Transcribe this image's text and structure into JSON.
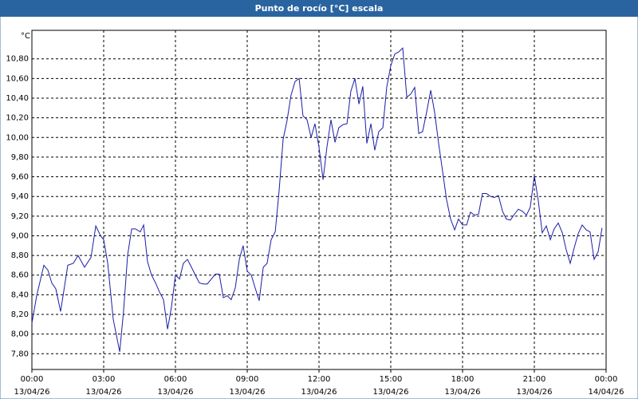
{
  "chart_data": {
    "type": "line",
    "title": "Punto de rocío [°C] escala",
    "y_label": "°C",
    "x": [
      0,
      0.2,
      0.5,
      0.67,
      0.83,
      1,
      1.2,
      1.5,
      1.73,
      1.93,
      2.2,
      2.47,
      2.67,
      2.87,
      3,
      3.17,
      3.4,
      3.67,
      3.83,
      4,
      4.17,
      4.33,
      4.53,
      4.67,
      4.83,
      5,
      5.17,
      5.33,
      5.5,
      5.67,
      5.83,
      6,
      6.17,
      6.33,
      6.5,
      6.67,
      6.83,
      7,
      7.17,
      7.33,
      7.5,
      7.67,
      7.83,
      8,
      8.17,
      8.33,
      8.5,
      8.67,
      8.83,
      9,
      9.17,
      9.33,
      9.5,
      9.67,
      9.83,
      10,
      10.17,
      10.33,
      10.5,
      10.67,
      10.83,
      11,
      11.17,
      11.33,
      11.5,
      11.67,
      11.83,
      12,
      12.17,
      12.33,
      12.5,
      12.67,
      12.83,
      13,
      13.17,
      13.33,
      13.5,
      13.67,
      13.83,
      14,
      14.17,
      14.33,
      14.5,
      14.67,
      14.83,
      15,
      15.17,
      15.33,
      15.5,
      15.67,
      15.83,
      16,
      16.17,
      16.33,
      16.5,
      16.67,
      16.83,
      17,
      17.17,
      17.33,
      17.5,
      17.67,
      17.83,
      18,
      18.17,
      18.33,
      18.5,
      18.67,
      18.83,
      19,
      19.17,
      19.33,
      19.5,
      19.67,
      19.83,
      20,
      20.17,
      20.33,
      20.5,
      20.67,
      20.83,
      21,
      21.17,
      21.33,
      21.5,
      21.67,
      21.83,
      22,
      22.17,
      22.33,
      22.5,
      22.67,
      22.83,
      23,
      23.17,
      23.33,
      23.5,
      23.67,
      23.83
    ],
    "values": [
      8.11,
      8.39,
      8.7,
      8.65,
      8.52,
      8.46,
      8.23,
      8.7,
      8.72,
      8.8,
      8.68,
      8.78,
      9.1,
      9.0,
      8.96,
      8.72,
      8.15,
      7.82,
      8.23,
      8.8,
      9.07,
      9.07,
      9.04,
      9.11,
      8.74,
      8.6,
      8.52,
      8.43,
      8.35,
      8.05,
      8.27,
      8.6,
      8.56,
      8.72,
      8.76,
      8.68,
      8.6,
      8.52,
      8.51,
      8.51,
      8.56,
      8.61,
      8.61,
      8.37,
      8.39,
      8.35,
      8.47,
      8.76,
      8.9,
      8.64,
      8.6,
      8.47,
      8.34,
      8.68,
      8.72,
      8.96,
      9.04,
      9.45,
      9.98,
      10.18,
      10.43,
      10.57,
      10.6,
      10.22,
      10.18,
      10.0,
      10.14,
      9.9,
      9.57,
      9.9,
      10.18,
      9.95,
      10.1,
      10.13,
      10.14,
      10.47,
      10.6,
      10.34,
      10.52,
      9.94,
      10.14,
      9.87,
      10.06,
      10.1,
      10.51,
      10.73,
      10.85,
      10.87,
      10.91,
      10.41,
      10.44,
      10.51,
      10.04,
      10.06,
      10.26,
      10.48,
      10.26,
      9.94,
      9.65,
      9.37,
      9.17,
      9.06,
      9.17,
      9.11,
      9.11,
      9.24,
      9.21,
      9.22,
      9.43,
      9.43,
      9.4,
      9.39,
      9.41,
      9.25,
      9.17,
      9.16,
      9.22,
      9.27,
      9.25,
      9.21,
      9.29,
      9.61,
      9.35,
      9.03,
      9.1,
      8.96,
      9.07,
      9.13,
      9.03,
      8.86,
      8.72,
      8.88,
      9.02,
      9.11,
      9.06,
      9.04,
      8.76,
      8.84,
      9.08
    ],
    "color": "#1c1ca8",
    "xlim": [
      0,
      24
    ],
    "xticks": [
      {
        "value": 0,
        "label": "00:00",
        "date": "13/04/26"
      },
      {
        "value": 3,
        "label": "03:00",
        "date": "13/04/26"
      },
      {
        "value": 6,
        "label": "06:00",
        "date": "13/04/26"
      },
      {
        "value": 9,
        "label": "09:00",
        "date": "13/04/26"
      },
      {
        "value": 12,
        "label": "12:00",
        "date": "13/04/26"
      },
      {
        "value": 15,
        "label": "15:00",
        "date": "13/04/26"
      },
      {
        "value": 18,
        "label": "18:00",
        "date": "13/04/26"
      },
      {
        "value": 21,
        "label": "21:00",
        "date": "13/04/26"
      },
      {
        "value": 24,
        "label": "00:00",
        "date": "14/04/26"
      }
    ],
    "ylim": [
      7.64,
      11.09
    ],
    "yticks": [
      {
        "value": 7.8,
        "label": "7,80"
      },
      {
        "value": 8,
        "label": "8,00"
      },
      {
        "value": 8.2,
        "label": "8,20"
      },
      {
        "value": 8.4,
        "label": "8,40"
      },
      {
        "value": 8.6,
        "label": "8,60"
      },
      {
        "value": 8.8,
        "label": "8,80"
      },
      {
        "value": 9,
        "label": "9,00"
      },
      {
        "value": 9.2,
        "label": "9,20"
      },
      {
        "value": 9.4,
        "label": "9,40"
      },
      {
        "value": 9.6,
        "label": "9,60"
      },
      {
        "value": 9.8,
        "label": "9,80"
      },
      {
        "value": 10,
        "label": "10,00"
      },
      {
        "value": 10.2,
        "label": "10,20"
      },
      {
        "value": 10.4,
        "label": "10,40"
      },
      {
        "value": 10.6,
        "label": "10,60"
      },
      {
        "value": 10.8,
        "label": "10,80"
      }
    ],
    "grid": true
  }
}
